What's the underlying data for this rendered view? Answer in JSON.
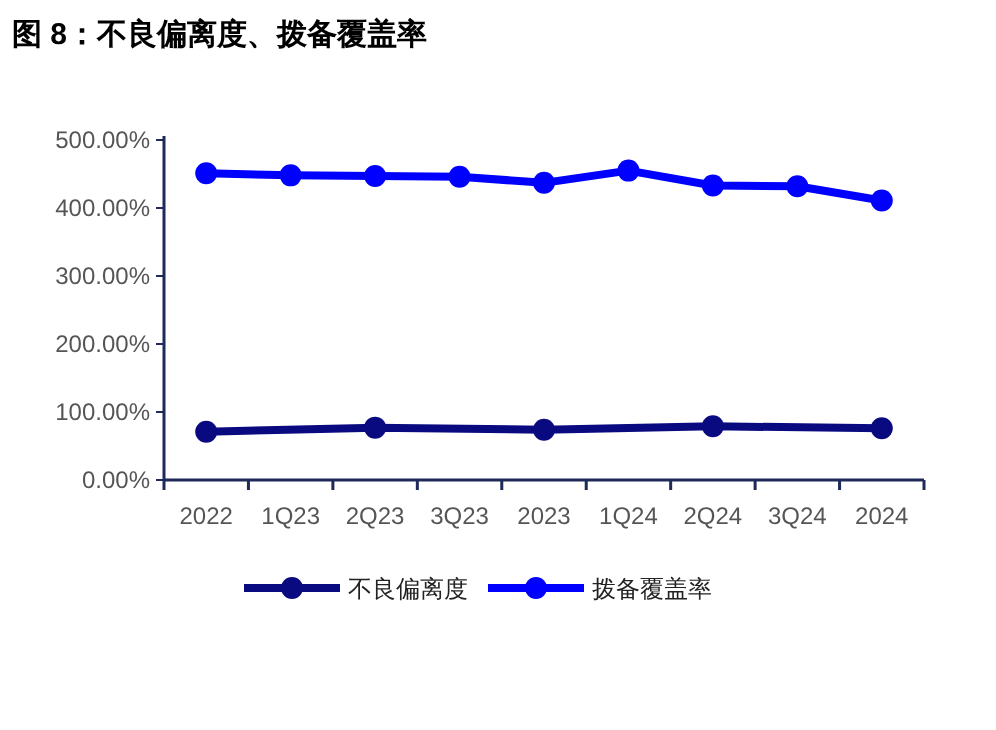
{
  "chart_data": {
    "type": "line",
    "title": "图 8：不良偏离度、拨备覆盖率",
    "categories": [
      "2022",
      "1Q23",
      "2Q23",
      "3Q23",
      "2023",
      "1Q24",
      "2Q24",
      "3Q24",
      "2024"
    ],
    "series": [
      {
        "name": "不良偏离度",
        "color": "#0a0a80",
        "values": [
          71,
          null,
          77,
          null,
          74,
          null,
          79,
          null,
          76
        ]
      },
      {
        "name": "拨备覆盖率",
        "color": "#0000ff",
        "values": [
          451,
          448,
          447,
          446,
          437,
          455,
          433,
          432,
          411
        ]
      }
    ],
    "ylim": [
      0,
      500
    ],
    "yticks": [
      {
        "value": 0,
        "label": "0.00%"
      },
      {
        "value": 100,
        "label": "100.00%"
      },
      {
        "value": 200,
        "label": "200.00%"
      },
      {
        "value": 300,
        "label": "300.00%"
      },
      {
        "value": 400,
        "label": "400.00%"
      },
      {
        "value": 500,
        "label": "500.00%"
      }
    ],
    "marker": "circle",
    "grid": false,
    "legend": "bottom"
  }
}
